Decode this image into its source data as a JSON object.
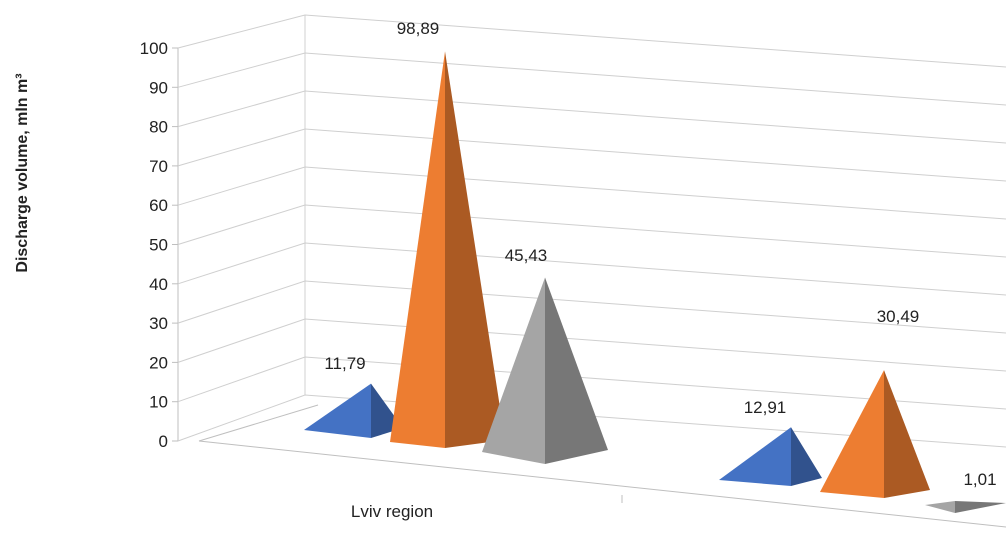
{
  "chart_data": {
    "type": "bar",
    "subtype": "3d-pyramid",
    "title": "",
    "ylabel": "Discharge volume, mln m³",
    "xlabel": "",
    "ylim": [
      0,
      100
    ],
    "yticks": [
      "0",
      "10",
      "20",
      "30",
      "40",
      "50",
      "60",
      "70",
      "80",
      "90",
      "100"
    ],
    "categories": [
      "Lviv region",
      ""
    ],
    "series": [
      {
        "values": [
          11.79,
          12.91
        ],
        "labels": [
          "11,79",
          "12,91"
        ]
      },
      {
        "values": [
          98.89,
          30.49
        ],
        "labels": [
          "98,89",
          "30,49"
        ]
      },
      {
        "values": [
          45.43,
          1.01
        ],
        "labels": [
          "45,43",
          "1,01"
        ]
      }
    ],
    "colors": [
      "#4472c4",
      "#ed7d31",
      "#a5a5a5"
    ],
    "grid": true,
    "legend": "none"
  }
}
